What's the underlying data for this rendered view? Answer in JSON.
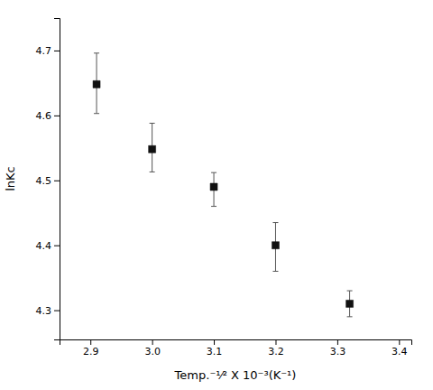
{
  "chart_data": {
    "type": "scatter",
    "x": [
      2.91,
      3.0,
      3.1,
      3.2,
      3.32
    ],
    "values": [
      4.648,
      4.548,
      4.49,
      4.4,
      4.31
    ],
    "yerr_lower": [
      0.045,
      0.035,
      0.03,
      0.04,
      0.02
    ],
    "yerr_upper": [
      0.048,
      0.04,
      0.022,
      0.035,
      0.02
    ],
    "x_label": "Temp.⁻¹⁄² X 10⁻³(K⁻¹)",
    "y_label": "lnKc",
    "xlim": [
      2.85,
      3.42
    ],
    "ylim": [
      4.255,
      4.75
    ],
    "xticks": [
      2.9,
      {
        "value": 3.0,
        "label": "3.0"
      },
      3.1,
      3.2,
      3.3,
      3.4
    ],
    "yticks": [
      4.3,
      4.4,
      4.5,
      4.6,
      4.7
    ],
    "marker": "square",
    "color": "#111111",
    "grid": false
  }
}
